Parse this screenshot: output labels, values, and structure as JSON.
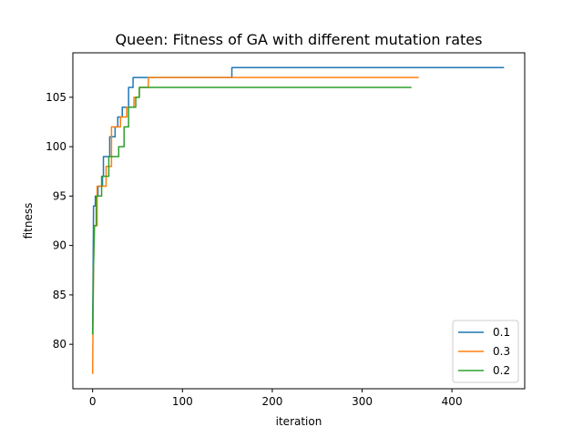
{
  "chart_data": {
    "type": "line",
    "title": "Queen: Fitness of GA with different mutation rates",
    "xlabel": "iteration",
    "ylabel": "fitness",
    "xlim": [
      -22,
      481
    ],
    "ylim": [
      75.5,
      109.5
    ],
    "xticks": [
      0,
      100,
      200,
      300,
      400
    ],
    "yticks": [
      80,
      85,
      90,
      95,
      100,
      105
    ],
    "grid": false,
    "legend_position": "lower right",
    "series": [
      {
        "name": "0.1",
        "color": "#1f77b4",
        "points": [
          [
            0,
            81
          ],
          [
            1,
            94
          ],
          [
            3,
            94
          ],
          [
            3,
            95
          ],
          [
            6,
            95
          ],
          [
            6,
            96
          ],
          [
            11,
            96
          ],
          [
            11,
            97
          ],
          [
            12,
            97
          ],
          [
            12,
            99
          ],
          [
            19,
            99
          ],
          [
            19,
            101
          ],
          [
            25,
            101
          ],
          [
            25,
            102
          ],
          [
            28,
            102
          ],
          [
            28,
            103
          ],
          [
            33,
            103
          ],
          [
            33,
            104
          ],
          [
            40,
            104
          ],
          [
            40,
            106
          ],
          [
            45,
            106
          ],
          [
            45,
            107
          ],
          [
            155,
            107
          ],
          [
            155,
            108
          ],
          [
            458,
            108
          ]
        ]
      },
      {
        "name": "0.3",
        "color": "#ff7f0e",
        "points": [
          [
            0,
            77
          ],
          [
            1,
            88
          ],
          [
            2,
            92
          ],
          [
            5,
            92
          ],
          [
            5,
            96
          ],
          [
            15,
            96
          ],
          [
            15,
            98
          ],
          [
            21,
            98
          ],
          [
            21,
            102
          ],
          [
            31,
            102
          ],
          [
            31,
            103
          ],
          [
            38,
            103
          ],
          [
            38,
            104
          ],
          [
            46,
            104
          ],
          [
            46,
            105
          ],
          [
            52,
            105
          ],
          [
            52,
            106
          ],
          [
            62,
            106
          ],
          [
            62,
            107
          ],
          [
            363,
            107
          ]
        ]
      },
      {
        "name": "0.2",
        "color": "#2ca02c",
        "points": [
          [
            0,
            81
          ],
          [
            1,
            88
          ],
          [
            2,
            92
          ],
          [
            4,
            92
          ],
          [
            4,
            95
          ],
          [
            10,
            95
          ],
          [
            10,
            97
          ],
          [
            18,
            97
          ],
          [
            18,
            99
          ],
          [
            29,
            99
          ],
          [
            29,
            100
          ],
          [
            35,
            100
          ],
          [
            35,
            102
          ],
          [
            40,
            102
          ],
          [
            40,
            104
          ],
          [
            48,
            104
          ],
          [
            48,
            105
          ],
          [
            52,
            105
          ],
          [
            52,
            106
          ],
          [
            355,
            106
          ]
        ]
      }
    ]
  }
}
